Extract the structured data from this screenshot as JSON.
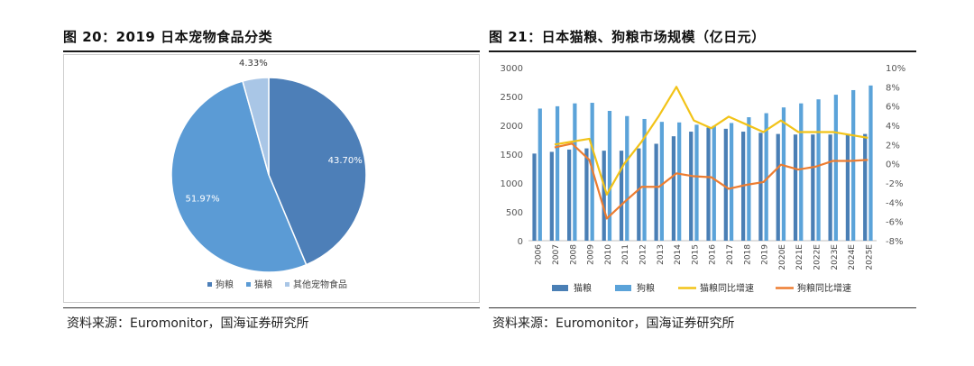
{
  "left": {
    "title": "图 20：2019 日本宠物食品分类",
    "source": "资料来源：Euromonitor，国海证券研究所"
  },
  "right": {
    "title": "图 21：日本猫粮、狗粮市场规模（亿日元）",
    "source": "资料来源：Euromonitor，国海证券研究所"
  },
  "chart_data": [
    {
      "type": "pie",
      "title": "",
      "slices": [
        {
          "name": "狗粮",
          "value": 43.7,
          "label": "43.70%",
          "color": "#4d7fb8"
        },
        {
          "name": "猫粮",
          "value": 51.97,
          "label": "51.97%",
          "color": "#5b9bd5"
        },
        {
          "name": "其他宠物食品",
          "value": 4.33,
          "label": "4.33%",
          "color": "#a9c6e6"
        }
      ],
      "legend": {
        "position": "bottom",
        "items": [
          "狗粮",
          "猫粮",
          "其他宠物食品"
        ]
      }
    },
    {
      "type": "bar",
      "title": "",
      "categories": [
        "2006",
        "2007",
        "2008",
        "2009",
        "2010",
        "2011",
        "2012",
        "2013",
        "2014",
        "2015",
        "2016",
        "2017",
        "2018",
        "2019",
        "2020E",
        "2021E",
        "2022E",
        "2023E",
        "2024E",
        "2025E"
      ],
      "series": [
        {
          "name": "猫粮",
          "type": "bar",
          "axis": "left",
          "color": "#4a7fb5",
          "values": [
            1510,
            1540,
            1580,
            1600,
            1560,
            1560,
            1600,
            1680,
            1810,
            1890,
            1960,
            1940,
            1890,
            1870,
            1850,
            1840,
            1840,
            1840,
            1840,
            1850
          ]
        },
        {
          "name": "狗粮",
          "type": "bar",
          "axis": "left",
          "color": "#5ba3d9",
          "values": [
            2290,
            2330,
            2380,
            2390,
            2250,
            2160,
            2110,
            2060,
            2050,
            2010,
            1990,
            2040,
            2140,
            2210,
            2310,
            2380,
            2450,
            2530,
            2610,
            2690
          ]
        },
        {
          "name": "猫粮同比增速",
          "type": "line",
          "axis": "right",
          "color": "#f2c318",
          "values": [
            null,
            2.0,
            2.3,
            2.6,
            -3.2,
            0.0,
            2.3,
            5.0,
            8.0,
            4.5,
            3.7,
            4.9,
            4.1,
            3.3,
            4.5,
            3.3,
            3.3,
            3.3,
            3.0,
            2.7
          ]
        },
        {
          "name": "狗粮同比增速",
          "type": "line",
          "axis": "right",
          "color": "#ed7d31",
          "values": [
            null,
            1.7,
            2.1,
            0.4,
            -5.7,
            -4.0,
            -2.4,
            -2.4,
            -1.0,
            -1.3,
            -1.4,
            -2.6,
            -2.2,
            -1.9,
            -0.1,
            -0.6,
            -0.3,
            0.3,
            0.3,
            0.4
          ]
        }
      ],
      "y_left": {
        "min": 0,
        "max": 3000,
        "ticks": [
          0,
          500,
          1000,
          1500,
          2000,
          2500,
          3000
        ]
      },
      "y_right": {
        "min": -8,
        "max": 10,
        "ticks": [
          "-8%",
          "-6%",
          "-4%",
          "-2%",
          "0%",
          "2%",
          "4%",
          "6%",
          "8%",
          "10%"
        ],
        "tick_values": [
          -8,
          -6,
          -4,
          -2,
          0,
          2,
          4,
          6,
          8,
          10
        ]
      },
      "legend": {
        "position": "bottom",
        "items": [
          "猫粮",
          "狗粮",
          "猫粮同比增速",
          "狗粮同比增速"
        ]
      }
    }
  ]
}
